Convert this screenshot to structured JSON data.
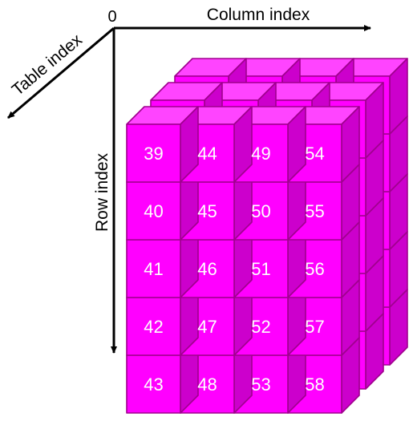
{
  "axes": {
    "origin_label": "0",
    "column_label": "Column index",
    "row_label": "Row index",
    "table_label": "Table index"
  },
  "front_table": {
    "rows": [
      [
        "39",
        "44",
        "49",
        "54"
      ],
      [
        "40",
        "45",
        "50",
        "55"
      ],
      [
        "41",
        "46",
        "51",
        "56"
      ],
      [
        "42",
        "47",
        "52",
        "57"
      ],
      [
        "43",
        "48",
        "53",
        "58"
      ]
    ]
  },
  "table_count": 3,
  "colors": {
    "face": "#ff00ff",
    "top": "#ff44ff",
    "side": "#cc00cc",
    "edge": "#a0008e",
    "cell_text": "#ffffff",
    "axis": "#000000"
  }
}
